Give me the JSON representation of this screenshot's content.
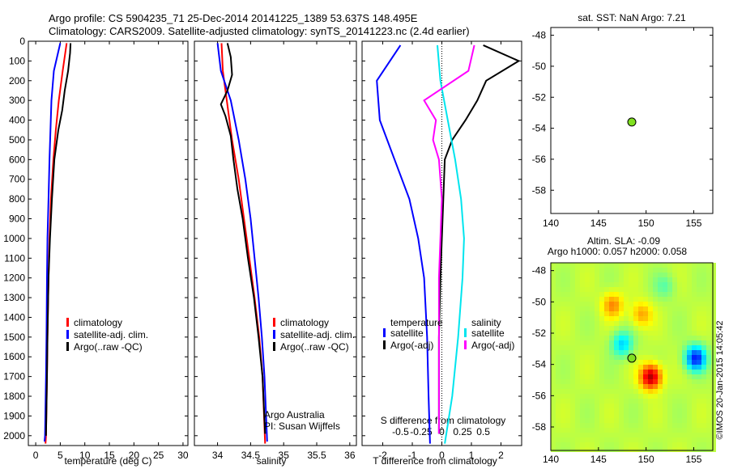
{
  "header": {
    "line1": "Argo profile: CS 5904235_71 25-Dec-2014 20141225_1389 53.637S 148.495E",
    "line2": "Climatology: CARS2009. Satellite-adjusted climatology: synTS_20141223.nc (2.4d earlier)"
  },
  "colors": {
    "climatology": "#ff0000",
    "satellite": "#0000ff",
    "argo": "#000000",
    "satellite_diff_T": "#00e5ee",
    "argo_diff_S": "#ff00ff",
    "marker": "#80e020"
  },
  "chart_data": [
    {
      "id": "temperature",
      "type": "line",
      "xlabel": "temperature (deg C)",
      "ylim": [
        2050,
        0
      ],
      "xlim": [
        -1.5,
        31
      ],
      "xticks": [
        0,
        5,
        10,
        15,
        20,
        25,
        30
      ],
      "yticks": [
        0,
        100,
        200,
        300,
        400,
        500,
        600,
        700,
        800,
        900,
        1000,
        1100,
        1200,
        1300,
        1400,
        1500,
        1600,
        1700,
        1800,
        1900,
        2000
      ],
      "legend": [
        "climatology",
        "satellite-adj. clim.",
        "Argo(..raw -QC)"
      ],
      "series": [
        {
          "name": "climatology",
          "color": "#ff0000",
          "points": [
            [
              6.3,
              10
            ],
            [
              5.5,
              150
            ],
            [
              4.7,
              300
            ],
            [
              4.1,
              450
            ],
            [
              3.6,
              600
            ],
            [
              3.1,
              800
            ],
            [
              2.8,
              1000
            ],
            [
              2.6,
              1200
            ],
            [
              2.4,
              1500
            ],
            [
              2.3,
              1700
            ],
            [
              2.1,
              2000
            ],
            [
              2.0,
              2040
            ]
          ]
        },
        {
          "name": "satellite-adj. clim.",
          "color": "#0000ff",
          "points": [
            [
              5.0,
              10
            ],
            [
              3.7,
              150
            ],
            [
              3.2,
              300
            ],
            [
              3.0,
              450
            ],
            [
              2.8,
              600
            ],
            [
              2.6,
              800
            ],
            [
              2.4,
              1000
            ],
            [
              2.3,
              1200
            ],
            [
              2.2,
              1500
            ],
            [
              2.1,
              1700
            ],
            [
              1.9,
              2000
            ],
            [
              1.8,
              2030
            ]
          ]
        },
        {
          "name": "Argo(..raw -QC)",
          "color": "#000000",
          "points": [
            [
              7.1,
              10
            ],
            [
              7.0,
              60
            ],
            [
              6.6,
              150
            ],
            [
              5.9,
              250
            ],
            [
              5.4,
              350
            ],
            [
              4.6,
              450
            ],
            [
              3.8,
              600
            ],
            [
              3.3,
              800
            ],
            [
              2.9,
              1000
            ],
            [
              2.6,
              1200
            ],
            [
              2.4,
              1500
            ],
            [
              2.3,
              1700
            ],
            [
              2.1,
              2000
            ]
          ]
        }
      ]
    },
    {
      "id": "salinity",
      "type": "line",
      "xlabel": "salinity",
      "ylim": [
        2050,
        0
      ],
      "xlim": [
        33.65,
        36.1
      ],
      "xticks": [
        34,
        34.5,
        35,
        35.5,
        36
      ],
      "legend": [
        "climatology",
        "satellite-adj. clim.",
        "Argo(..raw -QC)"
      ],
      "annotation": [
        "Argo Australia",
        "PI: Susan Wijffels"
      ],
      "series": [
        {
          "name": "climatology",
          "color": "#ff0000",
          "points": [
            [
              34.06,
              10
            ],
            [
              34.08,
              150
            ],
            [
              34.14,
              300
            ],
            [
              34.22,
              500
            ],
            [
              34.32,
              700
            ],
            [
              34.4,
              900
            ],
            [
              34.48,
              1100
            ],
            [
              34.56,
              1300
            ],
            [
              34.63,
              1500
            ],
            [
              34.68,
              1700
            ],
            [
              34.72,
              2040
            ]
          ]
        },
        {
          "name": "satellite-adj. clim.",
          "color": "#0000ff",
          "points": [
            [
              34.0,
              10
            ],
            [
              34.05,
              150
            ],
            [
              34.2,
              300
            ],
            [
              34.32,
              500
            ],
            [
              34.42,
              700
            ],
            [
              34.5,
              900
            ],
            [
              34.56,
              1100
            ],
            [
              34.62,
              1300
            ],
            [
              34.67,
              1500
            ],
            [
              34.71,
              1700
            ],
            [
              34.75,
              2030
            ]
          ]
        },
        {
          "name": "Argo(..raw -QC)",
          "color": "#000000",
          "points": [
            [
              34.15,
              10
            ],
            [
              34.2,
              80
            ],
            [
              34.22,
              170
            ],
            [
              34.15,
              250
            ],
            [
              34.05,
              320
            ],
            [
              34.12,
              380
            ],
            [
              34.2,
              480
            ],
            [
              34.24,
              600
            ],
            [
              34.3,
              750
            ],
            [
              34.38,
              900
            ],
            [
              34.46,
              1100
            ],
            [
              34.55,
              1300
            ],
            [
              34.62,
              1500
            ],
            [
              34.68,
              1700
            ],
            [
              34.72,
              1990
            ]
          ]
        }
      ]
    },
    {
      "id": "difference",
      "type": "line",
      "xlabel": "T difference from climatology",
      "xlabel_top": "S difference from climatology",
      "ylim": [
        2050,
        0
      ],
      "xlim": [
        -2.7,
        2.7
      ],
      "xticks": [
        -2,
        -1,
        0,
        1,
        2
      ],
      "sticks_labels": [
        "-0.5",
        "-0.25",
        "0",
        "0.25",
        "0.5"
      ],
      "legend_T": {
        "title": "temperature",
        "items": [
          "satellite",
          "Argo(-adj)"
        ]
      },
      "legend_S": {
        "title": "salinity",
        "items": [
          "satellite",
          "Argo(-adj)"
        ]
      },
      "series": [
        {
          "name": "T satellite",
          "color": "#0000ff",
          "points": [
            [
              -1.4,
              20
            ],
            [
              -2.2,
              200
            ],
            [
              -2.1,
              400
            ],
            [
              -1.6,
              600
            ],
            [
              -1.1,
              800
            ],
            [
              -0.8,
              1000
            ],
            [
              -0.6,
              1200
            ],
            [
              -0.5,
              1500
            ],
            [
              -0.45,
              1800
            ],
            [
              -0.4,
              2040
            ]
          ]
        },
        {
          "name": "T Argo(-adj)",
          "color": "#000000",
          "points": [
            [
              1.4,
              20
            ],
            [
              2.6,
              100
            ],
            [
              1.5,
              200
            ],
            [
              1.2,
              300
            ],
            [
              0.8,
              400
            ],
            [
              0.35,
              500
            ],
            [
              0.1,
              600
            ],
            [
              0.05,
              800
            ],
            [
              0.0,
              1000
            ],
            [
              -0.05,
              1200
            ],
            [
              -0.1,
              1500
            ],
            [
              -0.1,
              1800
            ],
            [
              -0.1,
              1990
            ]
          ]
        },
        {
          "name": "S satellite",
          "color": "#00e5ee",
          "points": [
            [
              -0.15,
              20
            ],
            [
              -0.05,
              200
            ],
            [
              0.2,
              400
            ],
            [
              0.45,
              600
            ],
            [
              0.65,
              800
            ],
            [
              0.75,
              1000
            ],
            [
              0.7,
              1200
            ],
            [
              0.55,
              1500
            ],
            [
              0.35,
              1800
            ],
            [
              0.1,
              2040
            ]
          ]
        },
        {
          "name": "S Argo(-adj)",
          "color": "#ff00ff",
          "points": [
            [
              1.1,
              20
            ],
            [
              0.9,
              150
            ],
            [
              -0.6,
              300
            ],
            [
              -0.2,
              400
            ],
            [
              -0.3,
              500
            ],
            [
              -0.1,
              600
            ],
            [
              0.0,
              800
            ],
            [
              -0.05,
              1000
            ],
            [
              -0.1,
              1200
            ],
            [
              -0.1,
              1500
            ],
            [
              -0.1,
              1800
            ],
            [
              -0.1,
              1990
            ]
          ]
        }
      ]
    },
    {
      "id": "sst",
      "type": "scatter",
      "title": "sat. SST: NaN Argo: 7.21",
      "xlim": [
        140,
        157
      ],
      "ylim": [
        -59.5,
        -47.5
      ],
      "xticks": [
        140,
        145,
        150,
        155
      ],
      "yticks": [
        -48,
        -50,
        -52,
        -54,
        -56,
        -58
      ],
      "points": [
        [
          148.5,
          -53.6
        ]
      ]
    },
    {
      "id": "sla",
      "type": "heatmap",
      "title1": "Altim. SLA: -0.09",
      "title2": "Argo h1000: 0.057 h2000: 0.058",
      "xlim": [
        140,
        157
      ],
      "ylim": [
        -59.5,
        -47.5
      ],
      "xticks": [
        140,
        145,
        150,
        155
      ],
      "yticks": [
        -48,
        -50,
        -52,
        -54,
        -56,
        -58
      ],
      "colormap": "jet",
      "features": [
        {
          "lon": 150.5,
          "lat": -54.8,
          "value": 0.9
        },
        {
          "lon": 155.2,
          "lat": -53.6,
          "value": -0.9
        },
        {
          "lon": 147.5,
          "lat": -52.7,
          "value": -0.5
        },
        {
          "lon": 146.5,
          "lat": -50.2,
          "value": 0.4
        },
        {
          "lon": 149.5,
          "lat": -50.8,
          "value": 0.35
        },
        {
          "lon": 152.0,
          "lat": -49.0,
          "value": -0.2
        }
      ],
      "points": [
        [
          148.5,
          -53.6
        ]
      ]
    }
  ],
  "credit": "©IMOS 20-Jan-2015 14:05:42"
}
